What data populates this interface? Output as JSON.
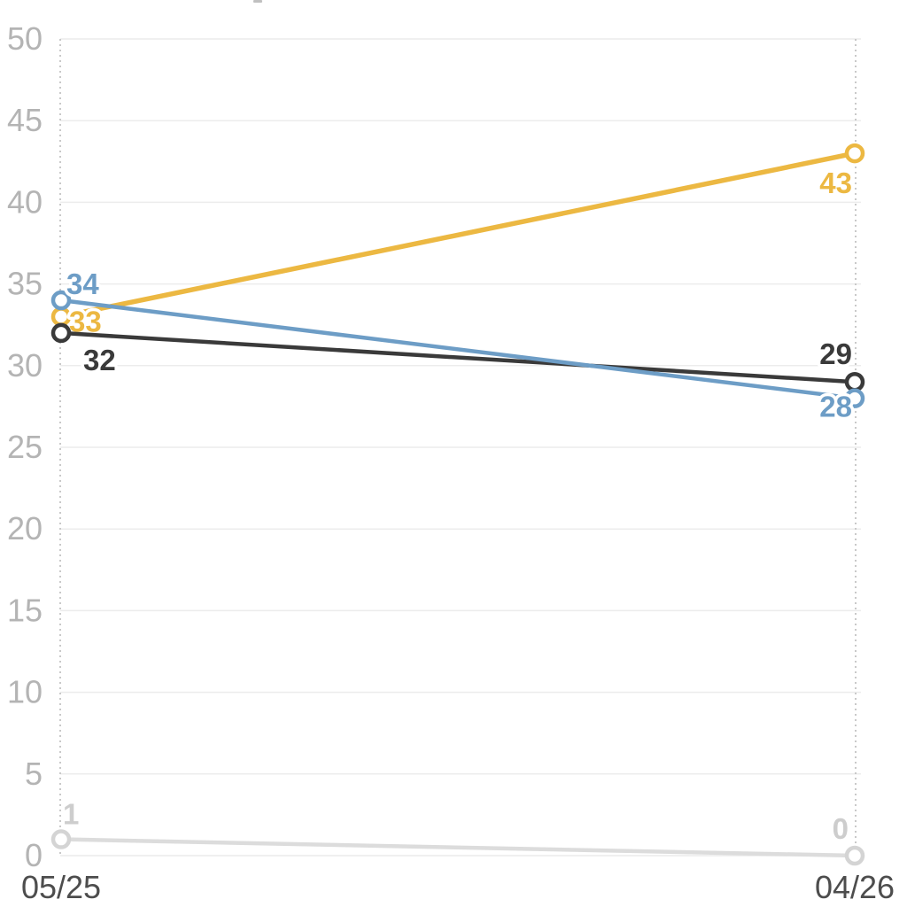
{
  "chart_data": {
    "type": "line",
    "title": "",
    "xlabel": "",
    "ylabel": "",
    "x_categories": [
      "05/25",
      "04/26"
    ],
    "ylim": [
      0,
      50
    ],
    "y_ticks": [
      0,
      5,
      10,
      15,
      20,
      25,
      30,
      35,
      40,
      45,
      50
    ],
    "grid": true,
    "legend_position": "none",
    "guide_lines": "dotted-vertical-at-each-x",
    "marker_style": "open-circle",
    "series": [
      {
        "name": "gray-baseline",
        "color": "#dcdcdc",
        "marker_color": "#d4d4d4",
        "label_color": "#cdcdcd",
        "line_width": 4.5,
        "values": [
          1,
          0
        ],
        "point_labels": [
          {
            "text": "1",
            "anchor": "start",
            "dx": 2,
            "dy": -17
          },
          {
            "text": "0",
            "anchor": "end",
            "dx": -7,
            "dy": -19
          }
        ]
      },
      {
        "name": "yellow",
        "color": "#ecb842",
        "marker_color": "#ecb842",
        "label_color": "#ecb842",
        "line_width": 5.5,
        "values": [
          33,
          43
        ],
        "point_labels": [
          {
            "text": "33",
            "anchor": "start",
            "dx": 9,
            "dy": 17
          },
          {
            "text": "43",
            "anchor": "end",
            "dx": -3,
            "dy": 45
          }
        ]
      },
      {
        "name": "black",
        "color": "#3a3a3a",
        "marker_color": "#3a3a3a",
        "label_color": "#3a3a3a",
        "line_width": 4.5,
        "values": [
          32,
          29
        ],
        "point_labels": [
          {
            "text": "32",
            "anchor": "start",
            "dx": 25,
            "dy": 42
          },
          {
            "text": "29",
            "anchor": "end",
            "dx": -3,
            "dy": -20
          }
        ]
      },
      {
        "name": "blue",
        "color": "#6d9dc6",
        "marker_color": "#6d9dc6",
        "label_color": "#6d9dc6",
        "line_width": 4.5,
        "values": [
          34,
          28
        ],
        "point_labels": [
          {
            "text": "34",
            "anchor": "start",
            "dx": 6,
            "dy": -7
          },
          {
            "text": "28",
            "anchor": "end",
            "dx": -3,
            "dy": 21
          }
        ]
      }
    ],
    "colors": {
      "grid": "#ececec",
      "guide": "#c9c9c9",
      "y_tick_label": "#b4b4b4",
      "x_tick_label": "#4d4d4d",
      "marker_fill": "#ffffff",
      "label_halo": "#ffffff"
    }
  }
}
